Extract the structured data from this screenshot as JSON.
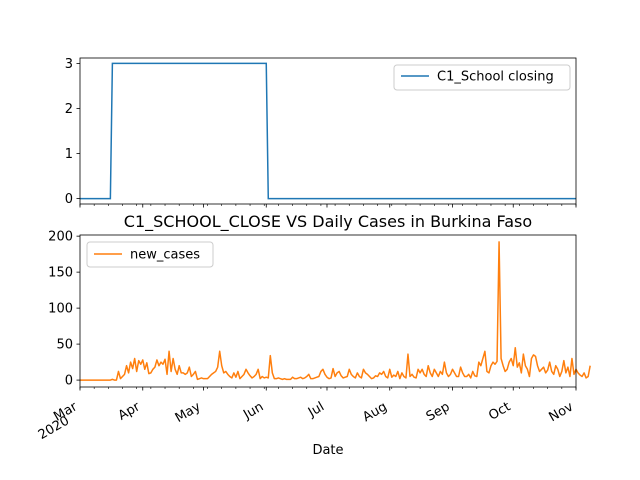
{
  "chart_data": [
    {
      "type": "line",
      "series": [
        {
          "name": "C1_School closing",
          "color": "#1f77b4",
          "points": [
            [
              "2020-03-01",
              0
            ],
            [
              "2020-03-16",
              0
            ],
            [
              "2020-03-17",
              3
            ],
            [
              "2020-06-01",
              3
            ],
            [
              "2020-06-02",
              0
            ],
            [
              "2020-11-01",
              0
            ]
          ]
        }
      ],
      "xlim": [
        "2020-03-01",
        "2020-11-01"
      ],
      "ylim": [
        -0.12,
        3.12
      ],
      "yticks": [
        0,
        1,
        2,
        3
      ],
      "legend": "top-right",
      "grid": false
    },
    {
      "type": "line",
      "title": "C1_SCHOOL_CLOSE VS Daily Cases in Burkina Faso",
      "xlabel": "Date",
      "series": [
        {
          "name": "new_cases",
          "color": "#ff7f0e",
          "start_date": "2020-03-01",
          "values": [
            0,
            0,
            0,
            0,
            0,
            0,
            0,
            0,
            0,
            0,
            0,
            0,
            0,
            0,
            0,
            0,
            1,
            0,
            0,
            12,
            2,
            5,
            8,
            20,
            10,
            25,
            16,
            30,
            12,
            27,
            22,
            28,
            15,
            24,
            9,
            10,
            15,
            18,
            28,
            20,
            25,
            22,
            29,
            8,
            40,
            12,
            30,
            15,
            8,
            20,
            10,
            10,
            8,
            10,
            18,
            5,
            8,
            12,
            1,
            2,
            3,
            2,
            2,
            2,
            5,
            8,
            10,
            12,
            18,
            40,
            20,
            10,
            12,
            8,
            5,
            3,
            10,
            4,
            12,
            2,
            5,
            8,
            15,
            10,
            6,
            3,
            5,
            8,
            15,
            2,
            5,
            3,
            4,
            3,
            34,
            10,
            2,
            2,
            3,
            2,
            1,
            2,
            1,
            1,
            1,
            4,
            2,
            2,
            3,
            4,
            2,
            3,
            5,
            8,
            2,
            2,
            3,
            4,
            5,
            12,
            15,
            8,
            4,
            2,
            3,
            16,
            5,
            10,
            12,
            6,
            3,
            4,
            5,
            15,
            8,
            5,
            3,
            10,
            5,
            3,
            15,
            10,
            8,
            5,
            2,
            3,
            6,
            5,
            10,
            8,
            12,
            5,
            3,
            15,
            4,
            7,
            5,
            12,
            2,
            10,
            5,
            3,
            36,
            5,
            8,
            4,
            3,
            15,
            10,
            15,
            8,
            5,
            20,
            10,
            5,
            15,
            10,
            5,
            12,
            8,
            25,
            10,
            5,
            8,
            15,
            10,
            5,
            5,
            18,
            10,
            5,
            5,
            8,
            3,
            12,
            6,
            5,
            25,
            20,
            30,
            40,
            12,
            10,
            20,
            25,
            22,
            26,
            192,
            30,
            20,
            12,
            15,
            25,
            30,
            20,
            45,
            18,
            24,
            10,
            36,
            20,
            15,
            5,
            30,
            35,
            33,
            20,
            12,
            15,
            18,
            10,
            14,
            25,
            12,
            8,
            20,
            15,
            5,
            12,
            27,
            10,
            18,
            5,
            30,
            8,
            15,
            10,
            7,
            5,
            10,
            3,
            5,
            20
          ]
        }
      ],
      "xlim": [
        "2020-03-01",
        "2020-11-01"
      ],
      "ylim": [
        -9.6,
        201.6
      ],
      "yticks": [
        0,
        50,
        100,
        150,
        200
      ],
      "xticks": [
        {
          "date": "2020-03-01",
          "label": "Mar",
          "sublabel": "2020"
        },
        {
          "date": "2020-04-01",
          "label": "Apr"
        },
        {
          "date": "2020-05-01",
          "label": "May"
        },
        {
          "date": "2020-06-01",
          "label": "Jun"
        },
        {
          "date": "2020-07-01",
          "label": "Jul"
        },
        {
          "date": "2020-08-01",
          "label": "Aug"
        },
        {
          "date": "2020-09-01",
          "label": "Sep"
        },
        {
          "date": "2020-10-01",
          "label": "Oct"
        },
        {
          "date": "2020-11-01",
          "label": "Nov"
        }
      ],
      "legend": "top-left",
      "grid": false
    }
  ]
}
